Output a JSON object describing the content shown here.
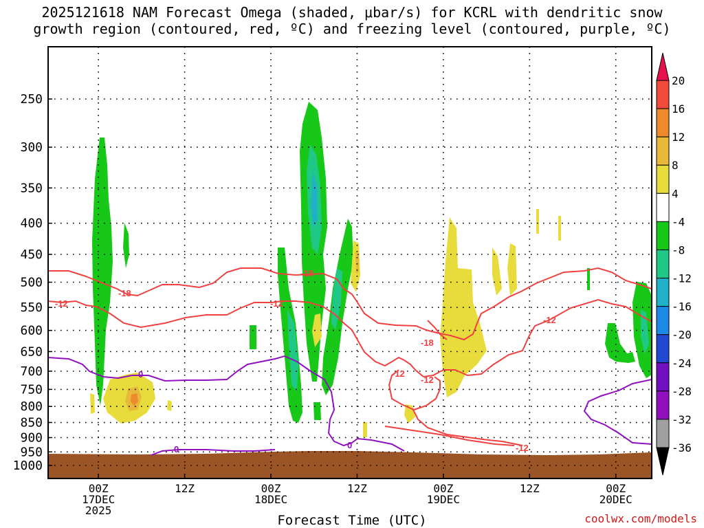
{
  "chart_data": {
    "type": "heatmap",
    "title_line1": "2025121618 NAM Forecast Omega (shaded, μbar/s) for KCRL with dendritic snow",
    "title_line2": "growth region (contoured, red, ºC) and freezing level (contoured, purple, ºC)",
    "xlabel": "Forecast Time (UTC)",
    "ylabel": "",
    "y_scale": "log-pressure (hPa)",
    "y_ticks": [
      250,
      300,
      350,
      400,
      450,
      500,
      550,
      600,
      650,
      700,
      750,
      800,
      850,
      900,
      950,
      1000
    ],
    "x_range_hours": [
      -7,
      77
    ],
    "x_ticks": [
      {
        "hour": 0,
        "line1": "00Z",
        "line2": "17DEC",
        "line3": "2025"
      },
      {
        "hour": 12,
        "line1": "12Z",
        "line2": "",
        "line3": ""
      },
      {
        "hour": 24,
        "line1": "00Z",
        "line2": "18DEC",
        "line3": ""
      },
      {
        "hour": 36,
        "line1": "12Z",
        "line2": "",
        "line3": ""
      },
      {
        "hour": 48,
        "line1": "00Z",
        "line2": "19DEC",
        "line3": ""
      },
      {
        "hour": 60,
        "line1": "12Z",
        "line2": "",
        "line3": ""
      },
      {
        "hour": 72,
        "line1": "00Z",
        "line2": "20DEC",
        "line3": ""
      }
    ],
    "grid": true,
    "colorbar": {
      "placement": "right",
      "levels": [
        "20",
        "16",
        "12",
        "8",
        "4",
        "-4",
        "-8",
        "-12",
        "-16",
        "-20",
        "-24",
        "-28",
        "-32",
        "-36"
      ],
      "colors": [
        "#e8104c",
        "#f04a3c",
        "#ee8a2a",
        "#e8b83a",
        "#e8dc3c",
        "#ffffff",
        "#18c818",
        "#20c888",
        "#20b0c8",
        "#1c88e8",
        "#2048d0",
        "#7010c0",
        "#9010c0",
        "#a0a0a0",
        "#000000"
      ]
    },
    "contour_labels": {
      "dendritic": [
        "-18",
        "-12",
        "-18",
        "-12",
        "-18",
        "-12",
        "-12",
        "-12",
        "-12"
      ],
      "freezing": [
        "0",
        "0",
        "0"
      ]
    },
    "colors": {
      "dendritic_contour": "#f04040",
      "freezing_contour": "#9010c0",
      "terrain": "#9b5426"
    }
  },
  "watermark": "coolwx.com/models"
}
